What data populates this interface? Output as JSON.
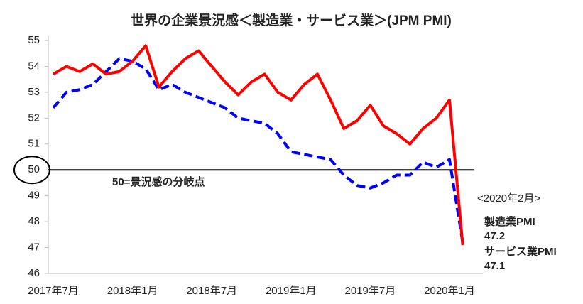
{
  "chart_data": {
    "type": "line",
    "title": "世界の企業景況感＜製造業・サービス業＞(JPM PMI)",
    "categories": [
      "2017年7月",
      null,
      null,
      null,
      null,
      null,
      "2018年1月",
      null,
      null,
      null,
      null,
      null,
      "2018年7月",
      null,
      null,
      null,
      null,
      null,
      "2019年1月",
      null,
      null,
      null,
      null,
      null,
      "2019年7月",
      null,
      null,
      null,
      null,
      null,
      "2020年1月",
      null
    ],
    "series": [
      {
        "name": "製造業PMI",
        "color": "#0000ff",
        "dashed": true,
        "values": [
          52.4,
          53.0,
          53.1,
          53.3,
          53.8,
          54.3,
          54.2,
          53.9,
          53.1,
          53.3,
          53.0,
          52.8,
          52.6,
          52.4,
          52.0,
          51.9,
          51.8,
          51.4,
          50.7,
          50.6,
          50.5,
          50.4,
          49.8,
          49.4,
          49.3,
          49.5,
          49.8,
          49.8,
          50.3,
          50.1,
          50.4,
          47.2
        ]
      },
      {
        "name": "サービス業PMI",
        "color": "#ff0000",
        "dashed": false,
        "values": [
          53.7,
          54.0,
          53.8,
          54.1,
          53.7,
          53.8,
          54.2,
          54.8,
          53.2,
          53.8,
          54.3,
          54.6,
          54.0,
          53.4,
          52.9,
          53.4,
          53.7,
          53.0,
          52.7,
          53.3,
          53.7,
          52.7,
          51.6,
          51.9,
          52.5,
          51.7,
          51.4,
          51.0,
          51.6,
          52.0,
          52.7,
          47.1
        ]
      }
    ],
    "ylim": [
      46,
      55
    ],
    "yticks": [
      46,
      47,
      48,
      49,
      50,
      51,
      52,
      53,
      54,
      55
    ],
    "reference_line": {
      "value": 50,
      "label": "50=景況感の分岐点"
    },
    "annotation": "<2020年2月>"
  }
}
